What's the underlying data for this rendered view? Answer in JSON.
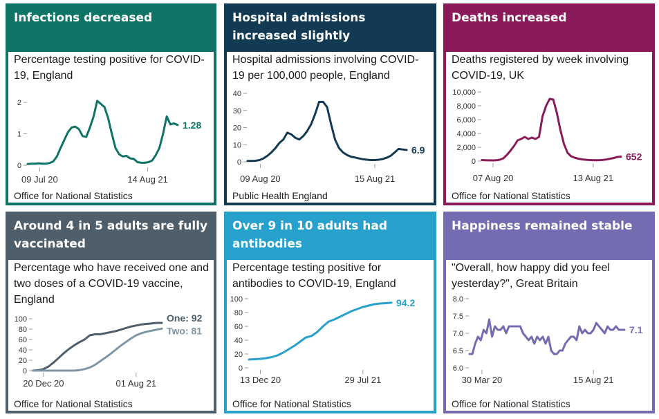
{
  "panels": [
    {
      "heading": "Infections decreased",
      "subtitle": "Percentage testing positive for COVID-19, England",
      "source": "Office for National Statistics",
      "color": "#0f7466"
    },
    {
      "heading": "Hospital admissions increased slightly",
      "subtitle": "Hospital admissions involving COVID-19 per 100,000 people, England",
      "source": "Public Health England",
      "color": "#123a53"
    },
    {
      "heading": "Deaths increased",
      "subtitle": "Deaths registered by week involving COVID-19, UK",
      "source": "Office for National Statistics",
      "color": "#8b1a5b"
    },
    {
      "heading": "Around 4 in 5 adults are fully vaccinated",
      "subtitle": "Percentage who have received one and two doses of a COVID-19 vaccine, England",
      "source": "Office for National Statistics",
      "color": "#4f5e6b"
    },
    {
      "heading": "Over 9 in 10 adults had antibodies",
      "subtitle": "Percentage testing positive for antibodies to COVID-19, England",
      "source": "Office for National Statistics",
      "color": "#27a0cc"
    },
    {
      "heading": "Happiness remained stable",
      "subtitle": "\"Overall, how happy did you feel yesterday?\", Great Britain",
      "source": "Office for National Statistics",
      "color": "#746cb1"
    }
  ],
  "chart_data": [
    {
      "type": "line",
      "ylim": [
        0,
        2.2
      ],
      "yticks": [
        0,
        1,
        2
      ],
      "ytick_labels": [
        "0",
        "1",
        "2"
      ],
      "xtick_labels": [
        "09 Jul 20",
        "14 Aug 21"
      ],
      "series": [
        {
          "color": "#0f7466",
          "end_label": "1.28",
          "values": [
            0.04,
            0.05,
            0.05,
            0.06,
            0.05,
            0.05,
            0.07,
            0.12,
            0.28,
            0.55,
            0.8,
            1.05,
            1.2,
            1.23,
            1.15,
            0.93,
            0.9,
            1.2,
            1.55,
            2.05,
            1.95,
            1.85,
            1.5,
            1.0,
            0.55,
            0.35,
            0.28,
            0.3,
            0.22,
            0.2,
            0.1,
            0.08,
            0.08,
            0.1,
            0.15,
            0.32,
            0.55,
            1.0,
            1.55,
            1.3,
            1.33,
            1.28
          ]
        }
      ]
    },
    {
      "type": "line",
      "ylim": [
        0,
        40
      ],
      "yticks": [
        0,
        10,
        20,
        30,
        40
      ],
      "ytick_labels": [
        "0",
        "10",
        "20",
        "30",
        "40"
      ],
      "xtick_labels": [
        "09 Aug 20",
        "15 Aug 21"
      ],
      "series": [
        {
          "color": "#123a53",
          "end_label": "6.9",
          "values": [
            0.5,
            0.5,
            0.6,
            1,
            2,
            3.5,
            5.5,
            8,
            11,
            13,
            17,
            16,
            14,
            13,
            15,
            18,
            22,
            28,
            35,
            35,
            32,
            22,
            13,
            8,
            5.5,
            4,
            3,
            2.5,
            2,
            1.5,
            1.2,
            1,
            1,
            1.2,
            1.6,
            2.4,
            3.5,
            5.5,
            7.5,
            7.2,
            6.9
          ]
        }
      ]
    },
    {
      "type": "line",
      "ylim": [
        0,
        10000
      ],
      "yticks": [
        0,
        2000,
        4000,
        6000,
        8000,
        10000
      ],
      "ytick_labels": [
        "0",
        "2,000",
        "4,000",
        "6,000",
        "8,000",
        "10,000"
      ],
      "xtick_labels": [
        "07 Aug 20",
        "13 Aug 21"
      ],
      "series": [
        {
          "color": "#8b1a5b",
          "end_label": "652",
          "values": [
            150,
            120,
            110,
            100,
            120,
            200,
            400,
            900,
            1500,
            2200,
            3000,
            3200,
            3500,
            3200,
            3400,
            3200,
            3500,
            6500,
            8000,
            9000,
            8900,
            7000,
            4500,
            2500,
            1200,
            700,
            500,
            350,
            250,
            200,
            160,
            140,
            130,
            140,
            170,
            250,
            350,
            450,
            600,
            652
          ]
        }
      ]
    },
    {
      "type": "line",
      "ylim": [
        0,
        100
      ],
      "yticks": [
        0,
        20,
        40,
        60,
        80,
        100
      ],
      "ytick_labels": [
        "0",
        "20",
        "40",
        "60",
        "80",
        "100"
      ],
      "xtick_labels": [
        "20 Dec 20",
        "01 Aug 21"
      ],
      "series": [
        {
          "name": "One",
          "color": "#4f5e6b",
          "end_label": "One: 92",
          "values": [
            0,
            1,
            3,
            8,
            16,
            25,
            34,
            42,
            49,
            55,
            60,
            68,
            70,
            70,
            72,
            74,
            76,
            79,
            82,
            85,
            87,
            89,
            90,
            91,
            92,
            92
          ]
        },
        {
          "name": "Two",
          "color": "#7e95a3",
          "end_label": "Two: 81",
          "values": [
            0,
            0,
            0,
            0,
            0,
            0,
            0,
            0,
            0,
            1,
            3,
            6,
            11,
            18,
            25,
            32,
            40,
            48,
            55,
            62,
            68,
            72,
            75,
            77,
            79,
            81
          ]
        }
      ]
    },
    {
      "type": "line",
      "ylim": [
        0,
        100
      ],
      "yticks": [
        0,
        20,
        40,
        60,
        80,
        100
      ],
      "ytick_labels": [
        "0",
        "20",
        "40",
        "60",
        "80",
        "100"
      ],
      "xtick_labels": [
        "13 Dec 20",
        "29 Jul 21"
      ],
      "series": [
        {
          "color": "#27a0cc",
          "end_label": "94.2",
          "values": [
            12,
            12.5,
            13,
            14,
            15.5,
            18,
            22,
            27,
            32,
            38,
            44,
            46,
            52,
            60,
            67,
            70,
            74,
            78,
            82,
            85,
            88,
            90,
            92,
            93,
            93.5,
            94.2
          ]
        }
      ]
    },
    {
      "type": "line",
      "ylim": [
        6.0,
        8.0
      ],
      "yticks": [
        6.0,
        6.5,
        7.0,
        7.5,
        8.0
      ],
      "ytick_labels": [
        "6.0",
        "6.5",
        "7.0",
        "7.5",
        "8.0"
      ],
      "xtick_labels": [
        "30 Mar 20",
        "15 Aug 21"
      ],
      "series": [
        {
          "color": "#746cb1",
          "end_label": "7.1",
          "values": [
            6.4,
            6.4,
            6.7,
            6.9,
            6.8,
            7.1,
            7.0,
            7.4,
            6.9,
            7.2,
            7.1,
            7.1,
            7.2,
            7.0,
            7.2,
            7.2,
            7.2,
            7.2,
            7.2,
            7.0,
            6.9,
            6.8,
            6.9,
            6.7,
            6.9,
            6.8,
            6.9,
            6.7,
            6.9,
            6.5,
            6.4,
            6.4,
            6.5,
            6.5,
            6.7,
            6.8,
            6.9,
            6.9,
            6.8,
            7.2,
            7.0,
            7.1,
            7.0,
            7.0,
            7.1,
            7.3,
            7.2,
            7.1,
            7.0,
            7.2,
            7.1,
            7.1,
            7.2,
            7.1,
            7.1,
            7.1
          ]
        }
      ]
    }
  ]
}
